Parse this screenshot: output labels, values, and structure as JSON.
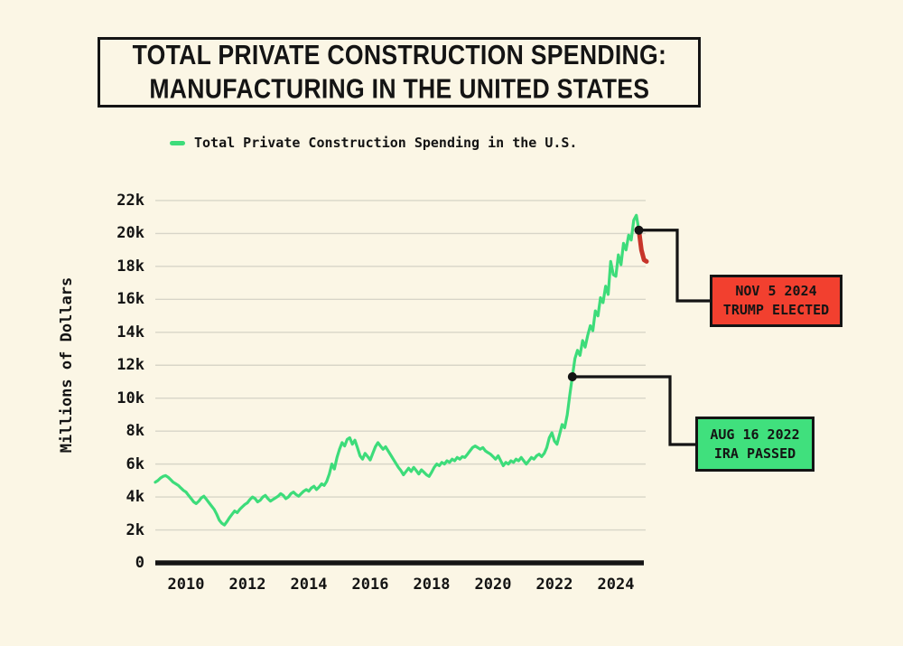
{
  "title": {
    "line1": "TOTAL PRIVATE CONSTRUCTION SPENDING:",
    "line2": "MANUFACTURING IN THE UNITED STATES"
  },
  "colors": {
    "background": "#fbf6e5",
    "text": "#141414",
    "gridline": "#d8d5c8",
    "line_green": "#3ddc7a",
    "line_red": "#c7352a",
    "trump_box_red": "#f2402f",
    "ira_box_green": "#40e07d"
  },
  "chart_data": {
    "type": "line",
    "title": "Total Private Construction Spending: Manufacturing in the United States",
    "ylabel": "Millions of Dollars",
    "unit": "millions of dollars",
    "ylim": [
      0,
      22000
    ],
    "xlim": [
      2009,
      2025.2
    ],
    "grid": "horizontal",
    "legend_position": "top-left",
    "y_tick_values": [
      0,
      2000,
      4000,
      6000,
      8000,
      10000,
      12000,
      14000,
      16000,
      18000,
      20000,
      22000
    ],
    "y_tick_labels": [
      "0",
      "2k",
      "4k",
      "6k",
      "8k",
      "10k",
      "12k",
      "14k",
      "16k",
      "18k",
      "20k",
      "22k"
    ],
    "x_tick_values": [
      2010,
      2012,
      2014,
      2016,
      2018,
      2020,
      2022,
      2024
    ],
    "x_tick_labels": [
      "2010",
      "2012",
      "2014",
      "2016",
      "2018",
      "2020",
      "2022",
      "2024"
    ],
    "series": [
      {
        "name": "Total Private Construction Spending in the U.S.",
        "color": "#3ddc7a",
        "start": "2009-01",
        "freq": "monthly",
        "values": [
          4900,
          5000,
          5150,
          5250,
          5300,
          5200,
          5050,
          4900,
          4800,
          4700,
          4550,
          4400,
          4300,
          4100,
          3900,
          3700,
          3600,
          3750,
          3950,
          4050,
          3850,
          3650,
          3450,
          3250,
          2950,
          2600,
          2400,
          2300,
          2500,
          2750,
          2950,
          3150,
          3050,
          3250,
          3400,
          3550,
          3650,
          3850,
          4000,
          3900,
          3700,
          3800,
          4000,
          4100,
          3900,
          3750,
          3850,
          3950,
          4050,
          4200,
          4100,
          3900,
          4000,
          4200,
          4300,
          4150,
          4050,
          4200,
          4350,
          4450,
          4350,
          4550,
          4650,
          4450,
          4600,
          4800,
          4700,
          4950,
          5400,
          6000,
          5700,
          6400,
          6900,
          7300,
          7100,
          7500,
          7600,
          7200,
          7450,
          7000,
          6500,
          6300,
          6650,
          6450,
          6250,
          6650,
          7050,
          7300,
          7100,
          6900,
          7050,
          6800,
          6550,
          6300,
          6050,
          5800,
          5600,
          5350,
          5550,
          5750,
          5550,
          5800,
          5600,
          5400,
          5650,
          5500,
          5350,
          5250,
          5500,
          5800,
          6000,
          5900,
          6100,
          6000,
          6200,
          6100,
          6300,
          6200,
          6400,
          6300,
          6450,
          6400,
          6600,
          6800,
          7000,
          7100,
          7000,
          6900,
          7000,
          6800,
          6700,
          6600,
          6450,
          6300,
          6500,
          6200,
          5900,
          6100,
          6000,
          6200,
          6100,
          6300,
          6200,
          6400,
          6200,
          6000,
          6200,
          6400,
          6300,
          6500,
          6600,
          6450,
          6650,
          7000,
          7600,
          7900,
          7400,
          7200,
          7800,
          8400,
          8200,
          9000,
          10200,
          11300,
          12400,
          12900,
          12600,
          13500,
          13100,
          13800,
          14400,
          14100,
          15300,
          15000,
          16100,
          15800,
          16800,
          16300,
          18300,
          17500,
          17400,
          18700,
          18100,
          19400,
          19000,
          19900,
          19600,
          20800,
          21100,
          20200
        ]
      }
    ],
    "post_election_segment": {
      "name": "Decline after Nov 2024 election",
      "color": "#c7352a",
      "start": "2024-10",
      "freq": "monthly",
      "values": [
        20200,
        19000,
        18400,
        18300
      ]
    },
    "events": [
      {
        "date_label": "AUG 16 2022",
        "label": "IRA PASSED",
        "year_fraction": 2022.583,
        "value": 11300,
        "box_color": "#40e07d"
      },
      {
        "date_label": "NOV 5 2024",
        "label": "TRUMP ELECTED",
        "year_fraction": 2024.75,
        "value": 20200,
        "box_color": "#f2402f"
      }
    ]
  }
}
